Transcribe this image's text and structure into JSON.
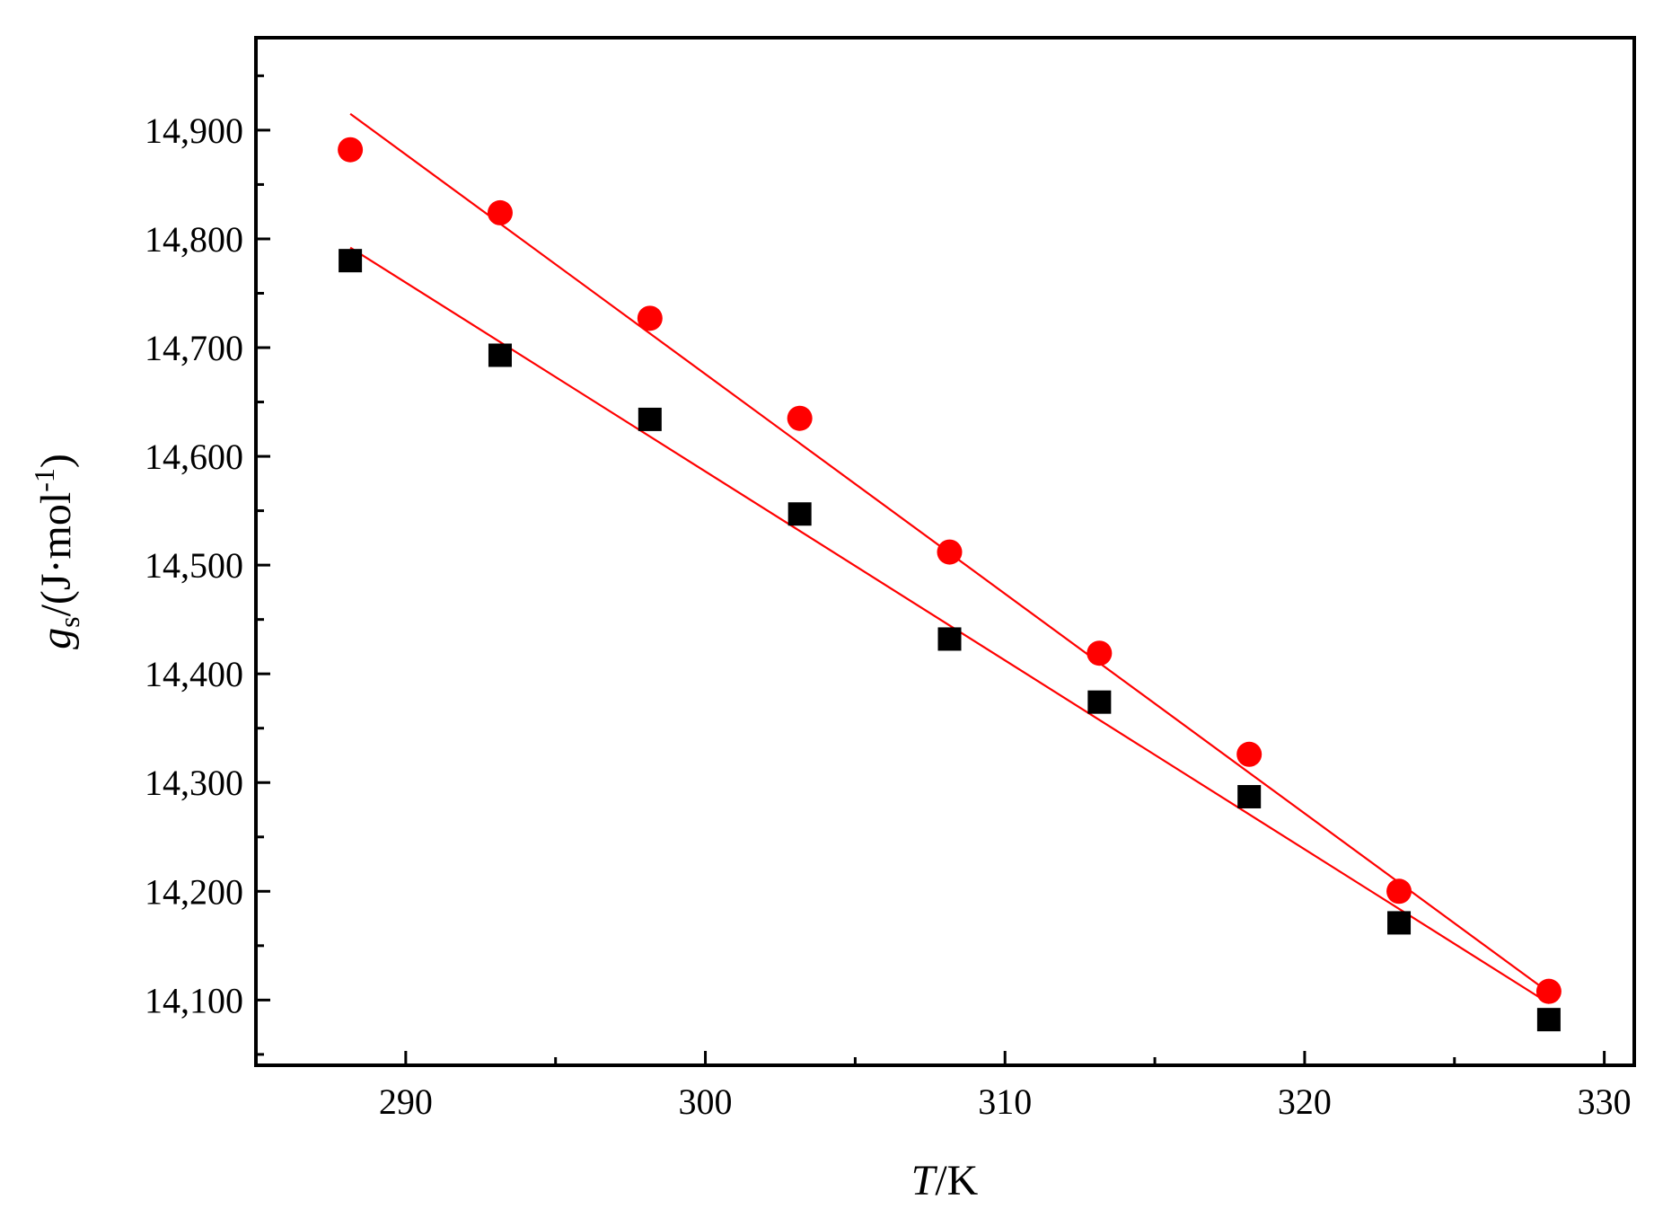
{
  "chart_data": {
    "type": "scatter",
    "title": "",
    "xlabel": {
      "italic": "T",
      "rest": "/K"
    },
    "ylabel": {
      "italic": "g",
      "sub": "s",
      "rest": "/(J·mol",
      "sup": "-1",
      "close": ")"
    },
    "xlim": [
      285,
      331
    ],
    "ylim": [
      14040,
      14985
    ],
    "x_ticks": [
      290,
      300,
      310,
      320,
      330
    ],
    "x_tick_labels": [
      "290",
      "300",
      "310",
      "320",
      "330"
    ],
    "y_ticks": [
      14100,
      14200,
      14300,
      14400,
      14500,
      14600,
      14700,
      14800,
      14900
    ],
    "y_tick_labels": [
      "14,100",
      "14,200",
      "14,300",
      "14,400",
      "14,500",
      "14,600",
      "14,700",
      "14,800",
      "14,900"
    ],
    "grid": false,
    "legend": "none",
    "series": [
      {
        "marker": "square",
        "color": "#000000",
        "x": [
          288.15,
          293.15,
          298.15,
          303.15,
          308.15,
          313.15,
          318.15,
          323.15,
          328.15
        ],
        "y": [
          14780,
          14693,
          14634,
          14547,
          14432,
          14374,
          14287,
          14171,
          14082
        ],
        "fit": {
          "color": "#ff0000",
          "x": [
            288.15,
            328.15
          ],
          "y": [
            14792,
            14097
          ]
        }
      },
      {
        "marker": "circle",
        "color": "#ff0000",
        "x": [
          288.15,
          293.15,
          298.15,
          303.15,
          308.15,
          313.15,
          318.15,
          323.15,
          328.15
        ],
        "y": [
          14882,
          14824,
          14727,
          14635,
          14512,
          14419,
          14326,
          14200,
          14108
        ],
        "fit": {
          "color": "#ff0000",
          "x": [
            288.15,
            328.15
          ],
          "y": [
            14915,
            14107
          ]
        }
      }
    ]
  }
}
